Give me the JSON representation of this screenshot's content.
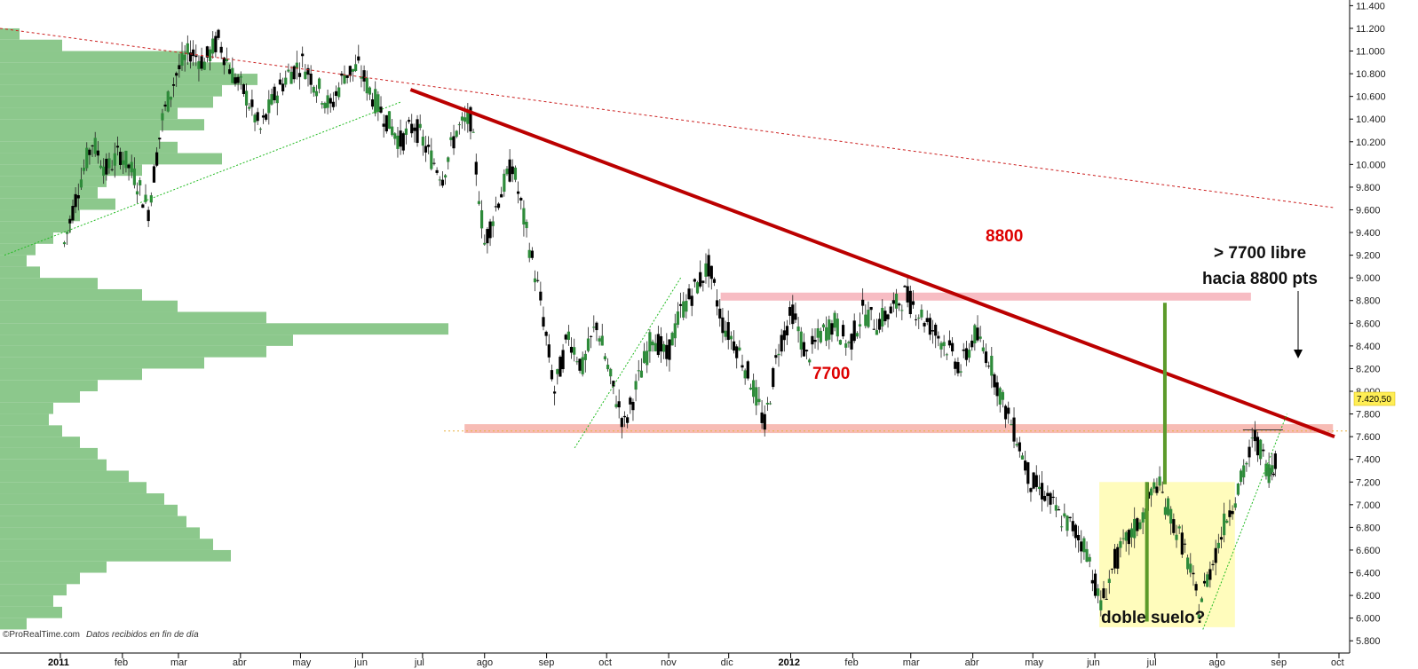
{
  "chart_data": {
    "type": "candlestick",
    "instrument": "",
    "frequency": "daily",
    "ylim": [
      5700,
      11450
    ],
    "y_ticks": [
      5800,
      6000,
      6200,
      6400,
      6600,
      6800,
      7000,
      7200,
      7400,
      7600,
      7800,
      8000,
      8200,
      8400,
      8600,
      8800,
      9000,
      9200,
      9400,
      9600,
      9800,
      10000,
      10200,
      10400,
      10600,
      10800,
      11000,
      11200,
      11400
    ],
    "y_tick_labels": [
      "5.800",
      "6.000",
      "6.200",
      "6.400",
      "6.600",
      "6.800",
      "7.000",
      "7.200",
      "7.400",
      "7.600",
      "7.800",
      "8.000",
      "8.200",
      "8.400",
      "8.600",
      "8.800",
      "9.000",
      "9.200",
      "9.400",
      "9.600",
      "9.800",
      "10.000",
      "10.200",
      "10.400",
      "10.600",
      "10.800",
      "11.000",
      "11.200",
      "11.400"
    ],
    "x_ticks": [
      {
        "label": "2011",
        "date": "2011-01-01",
        "year": true
      },
      {
        "label": "feb",
        "date": "2011-02-01"
      },
      {
        "label": "mar",
        "date": "2011-03-01"
      },
      {
        "label": "abr",
        "date": "2011-04-01"
      },
      {
        "label": "may",
        "date": "2011-05-01"
      },
      {
        "label": "jun",
        "date": "2011-06-01"
      },
      {
        "label": "jul",
        "date": "2011-07-01"
      },
      {
        "label": "ago",
        "date": "2011-08-01"
      },
      {
        "label": "sep",
        "date": "2011-09-01"
      },
      {
        "label": "oct",
        "date": "2011-10-01"
      },
      {
        "label": "nov",
        "date": "2011-11-01"
      },
      {
        "label": "dic",
        "date": "2011-12-01"
      },
      {
        "label": "2012",
        "date": "2012-01-01",
        "year": true
      },
      {
        "label": "feb",
        "date": "2012-02-01"
      },
      {
        "label": "mar",
        "date": "2012-03-01"
      },
      {
        "label": "abr",
        "date": "2012-04-01"
      },
      {
        "label": "may",
        "date": "2012-05-01"
      },
      {
        "label": "jun",
        "date": "2012-06-01"
      },
      {
        "label": "jul",
        "date": "2012-07-01"
      },
      {
        "label": "ago",
        "date": "2012-08-01"
      },
      {
        "label": "sep",
        "date": "2012-09-01"
      },
      {
        "label": "oct",
        "date": "2012-10-01"
      }
    ],
    "price_path": [
      {
        "date": "2011-01-03",
        "close": 9300
      },
      {
        "date": "2011-01-10",
        "close": 9800
      },
      {
        "date": "2011-01-17",
        "close": 10200
      },
      {
        "date": "2011-01-24",
        "close": 9950
      },
      {
        "date": "2011-01-31",
        "close": 10100
      },
      {
        "date": "2011-02-07",
        "close": 9900
      },
      {
        "date": "2011-02-14",
        "close": 9600
      },
      {
        "date": "2011-02-21",
        "close": 10400
      },
      {
        "date": "2011-02-28",
        "close": 10800
      },
      {
        "date": "2011-03-07",
        "close": 11000
      },
      {
        "date": "2011-03-14",
        "close": 10900
      },
      {
        "date": "2011-03-21",
        "close": 11100
      },
      {
        "date": "2011-03-28",
        "close": 10800
      },
      {
        "date": "2011-04-04",
        "close": 10600
      },
      {
        "date": "2011-04-11",
        "close": 10300
      },
      {
        "date": "2011-04-18",
        "close": 10600
      },
      {
        "date": "2011-04-25",
        "close": 10800
      },
      {
        "date": "2011-05-02",
        "close": 10900
      },
      {
        "date": "2011-05-09",
        "close": 10700
      },
      {
        "date": "2011-05-16",
        "close": 10500
      },
      {
        "date": "2011-05-23",
        "close": 10800
      },
      {
        "date": "2011-05-30",
        "close": 10850
      },
      {
        "date": "2011-06-06",
        "close": 10600
      },
      {
        "date": "2011-06-13",
        "close": 10400
      },
      {
        "date": "2011-06-20",
        "close": 10200
      },
      {
        "date": "2011-06-27",
        "close": 10350
      },
      {
        "date": "2011-07-04",
        "close": 10100
      },
      {
        "date": "2011-07-11",
        "close": 9900
      },
      {
        "date": "2011-07-18",
        "close": 10300
      },
      {
        "date": "2011-07-25",
        "close": 10400
      },
      {
        "date": "2011-08-01",
        "close": 9300
      },
      {
        "date": "2011-08-08",
        "close": 9700
      },
      {
        "date": "2011-08-15",
        "close": 10000
      },
      {
        "date": "2011-08-22",
        "close": 9400
      },
      {
        "date": "2011-08-29",
        "close": 8800
      },
      {
        "date": "2011-09-05",
        "close": 8000
      },
      {
        "date": "2011-09-12",
        "close": 8500
      },
      {
        "date": "2011-09-19",
        "close": 8200
      },
      {
        "date": "2011-09-26",
        "close": 8600
      },
      {
        "date": "2011-10-03",
        "close": 8100
      },
      {
        "date": "2011-10-10",
        "close": 7700
      },
      {
        "date": "2011-10-17",
        "close": 8100
      },
      {
        "date": "2011-10-24",
        "close": 8500
      },
      {
        "date": "2011-10-31",
        "close": 8300
      },
      {
        "date": "2011-11-07",
        "close": 8700
      },
      {
        "date": "2011-11-14",
        "close": 8900
      },
      {
        "date": "2011-11-21",
        "close": 9100
      },
      {
        "date": "2011-11-28",
        "close": 8600
      },
      {
        "date": "2011-12-05",
        "close": 8400
      },
      {
        "date": "2011-12-12",
        "close": 8100
      },
      {
        "date": "2011-12-19",
        "close": 7700
      },
      {
        "date": "2011-12-26",
        "close": 8400
      },
      {
        "date": "2012-01-02",
        "close": 8700
      },
      {
        "date": "2012-01-09",
        "close": 8300
      },
      {
        "date": "2012-01-16",
        "close": 8500
      },
      {
        "date": "2012-01-23",
        "close": 8600
      },
      {
        "date": "2012-01-30",
        "close": 8400
      },
      {
        "date": "2012-02-06",
        "close": 8700
      },
      {
        "date": "2012-02-13",
        "close": 8600
      },
      {
        "date": "2012-02-20",
        "close": 8700
      },
      {
        "date": "2012-02-27",
        "close": 8850
      },
      {
        "date": "2012-03-05",
        "close": 8700
      },
      {
        "date": "2012-03-12",
        "close": 8550
      },
      {
        "date": "2012-03-19",
        "close": 8400
      },
      {
        "date": "2012-03-26",
        "close": 8200
      },
      {
        "date": "2012-04-02",
        "close": 8500
      },
      {
        "date": "2012-04-09",
        "close": 8300
      },
      {
        "date": "2012-04-16",
        "close": 7900
      },
      {
        "date": "2012-04-23",
        "close": 7600
      },
      {
        "date": "2012-04-30",
        "close": 7200
      },
      {
        "date": "2012-05-07",
        "close": 7100
      },
      {
        "date": "2012-05-14",
        "close": 6900
      },
      {
        "date": "2012-05-21",
        "close": 6800
      },
      {
        "date": "2012-05-28",
        "close": 6600
      },
      {
        "date": "2012-06-04",
        "close": 6100
      },
      {
        "date": "2012-06-11",
        "close": 6500
      },
      {
        "date": "2012-06-18",
        "close": 6700
      },
      {
        "date": "2012-06-25",
        "close": 6900
      },
      {
        "date": "2012-07-02",
        "close": 7200
      },
      {
        "date": "2012-07-09",
        "close": 6900
      },
      {
        "date": "2012-07-16",
        "close": 6600
      },
      {
        "date": "2012-07-23",
        "close": 6100
      },
      {
        "date": "2012-07-30",
        "close": 6500
      },
      {
        "date": "2012-08-06",
        "close": 6900
      },
      {
        "date": "2012-08-13",
        "close": 7200
      },
      {
        "date": "2012-08-20",
        "close": 7600
      },
      {
        "date": "2012-08-27",
        "close": 7300
      },
      {
        "date": "2012-08-31",
        "close": 7420.5
      }
    ],
    "last_price_label": "7.420,50",
    "annotations": {
      "level_7700": {
        "value": 7700,
        "label": "7700"
      },
      "level_8800": {
        "value": 8800,
        "label": "8800"
      },
      "note_line1": "> 7700 libre",
      "note_line2": "hacia 8800 pts",
      "double_bottom": "doble suelo?"
    },
    "credit": {
      "brand": "©ProRealTime.com",
      "text": "Datos recibidos en fin de día"
    },
    "colors": {
      "up_candle": "#2e8b3a",
      "down_candle": "#000000",
      "volume_profile": "#8cc88c",
      "main_trend": "#bb0000",
      "long_trend": "#cc2222",
      "support_band": "#f6b0a8",
      "resistance_band": "#f6b0b8",
      "target_bar": "#5c9a2a",
      "highlight_box": "#fffbb0",
      "green_trend": "#22bb22"
    },
    "grid": false
  }
}
